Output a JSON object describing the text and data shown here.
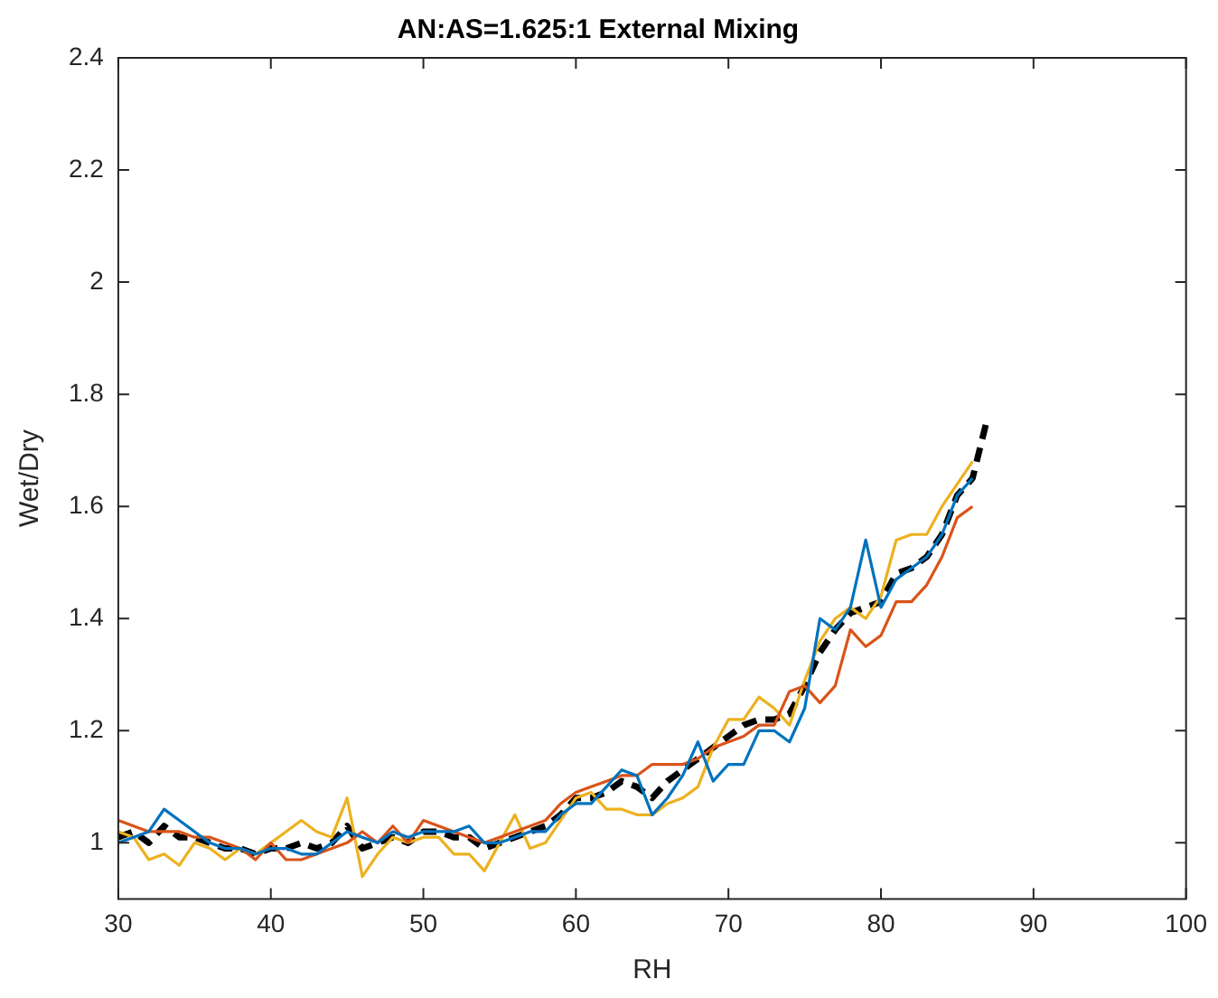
{
  "chart_data": {
    "type": "line",
    "title": "AN:AS=1.625:1 External Mixing",
    "xlabel": "RH",
    "ylabel": "Wet/Dry",
    "x": [
      30,
      31,
      32,
      33,
      34,
      35,
      36,
      37,
      38,
      39,
      40,
      41,
      42,
      43,
      44,
      45,
      46,
      47,
      48,
      49,
      50,
      51,
      52,
      53,
      54,
      55,
      56,
      57,
      58,
      59,
      60,
      61,
      62,
      63,
      64,
      65,
      66,
      67,
      68,
      69,
      70,
      71,
      72,
      73,
      74,
      75,
      76,
      77,
      78,
      79,
      80,
      81,
      82,
      83,
      84,
      85,
      86
    ],
    "xlim": [
      30,
      100
    ],
    "xticks": [
      30,
      40,
      50,
      60,
      70,
      80,
      90,
      100
    ],
    "ylim": [
      0.9,
      2.4
    ],
    "yticks": [
      1,
      1.2,
      1.4,
      1.6,
      1.8,
      2,
      2.2,
      2.4
    ],
    "grid": false,
    "legend": false,
    "marker": "none",
    "series": [
      {
        "color": "#0072bd",
        "line_style": "solid",
        "values": [
          1.0,
          1.01,
          1.02,
          1.06,
          1.04,
          1.02,
          1.0,
          0.99,
          0.99,
          0.98,
          0.99,
          0.99,
          0.98,
          0.98,
          1.0,
          1.02,
          1.01,
          1.0,
          1.02,
          1.01,
          1.02,
          1.02,
          1.02,
          1.03,
          1.0,
          1.0,
          1.01,
          1.02,
          1.02,
          1.05,
          1.07,
          1.07,
          1.1,
          1.13,
          1.12,
          1.05,
          1.08,
          1.12,
          1.18,
          1.11,
          1.14,
          1.14,
          1.2,
          1.2,
          1.18,
          1.24,
          1.4,
          1.38,
          1.42,
          1.54,
          1.42,
          1.47,
          1.49,
          1.51,
          1.55,
          1.62,
          1.65
        ]
      },
      {
        "color": "#d95319",
        "line_style": "solid",
        "values": [
          1.04,
          1.03,
          1.02,
          1.02,
          1.02,
          1.01,
          1.01,
          1.0,
          0.99,
          0.97,
          1.0,
          0.97,
          0.97,
          0.98,
          0.99,
          1.0,
          1.02,
          1.0,
          1.03,
          1.0,
          1.04,
          1.03,
          1.02,
          1.01,
          1.0,
          1.01,
          1.02,
          1.03,
          1.04,
          1.07,
          1.09,
          1.1,
          1.11,
          1.12,
          1.12,
          1.14,
          1.14,
          1.14,
          1.15,
          1.17,
          1.18,
          1.19,
          1.21,
          1.21,
          1.27,
          1.28,
          1.25,
          1.28,
          1.38,
          1.35,
          1.37,
          1.43,
          1.43,
          1.46,
          1.51,
          1.58,
          1.6
        ]
      },
      {
        "color": "#edb120",
        "line_style": "solid",
        "values": [
          1.02,
          1.01,
          0.97,
          0.98,
          0.96,
          1.0,
          0.99,
          0.97,
          0.99,
          0.98,
          1.0,
          1.02,
          1.04,
          1.02,
          1.01,
          1.08,
          0.94,
          0.98,
          1.01,
          1.0,
          1.01,
          1.01,
          0.98,
          0.98,
          0.95,
          1.0,
          1.05,
          0.99,
          1.0,
          1.04,
          1.08,
          1.09,
          1.06,
          1.06,
          1.05,
          1.05,
          1.07,
          1.08,
          1.1,
          1.17,
          1.22,
          1.22,
          1.26,
          1.24,
          1.21,
          1.29,
          1.36,
          1.4,
          1.42,
          1.4,
          1.44,
          1.54,
          1.55,
          1.55,
          1.6,
          1.64,
          1.68
        ]
      },
      {
        "color": "#000000",
        "line_style": "dashed",
        "x": [
          30,
          31,
          32,
          33,
          34,
          35,
          36,
          37,
          38,
          39,
          40,
          41,
          42,
          43,
          44,
          45,
          46,
          47,
          48,
          49,
          50,
          51,
          52,
          53,
          54,
          55,
          56,
          57,
          58,
          59,
          60,
          61,
          62,
          63,
          64,
          65,
          66,
          67,
          68,
          69,
          70,
          71,
          72,
          73,
          74,
          75,
          76,
          77,
          78,
          79,
          80,
          81,
          82,
          83,
          84,
          85,
          86,
          87
        ],
        "values": [
          1.01,
          1.02,
          1.0,
          1.03,
          1.01,
          1.01,
          1.0,
          0.99,
          0.99,
          0.98,
          0.99,
          0.99,
          1.0,
          0.99,
          1.0,
          1.03,
          0.99,
          1.0,
          1.01,
          1.0,
          1.02,
          1.02,
          1.01,
          1.01,
          0.99,
          1.0,
          1.01,
          1.02,
          1.03,
          1.05,
          1.08,
          1.08,
          1.09,
          1.11,
          1.1,
          1.08,
          1.11,
          1.13,
          1.15,
          1.17,
          1.19,
          1.21,
          1.22,
          1.22,
          1.23,
          1.28,
          1.34,
          1.38,
          1.41,
          1.42,
          1.43,
          1.48,
          1.49,
          1.51,
          1.55,
          1.62,
          1.65,
          1.76
        ]
      }
    ]
  }
}
